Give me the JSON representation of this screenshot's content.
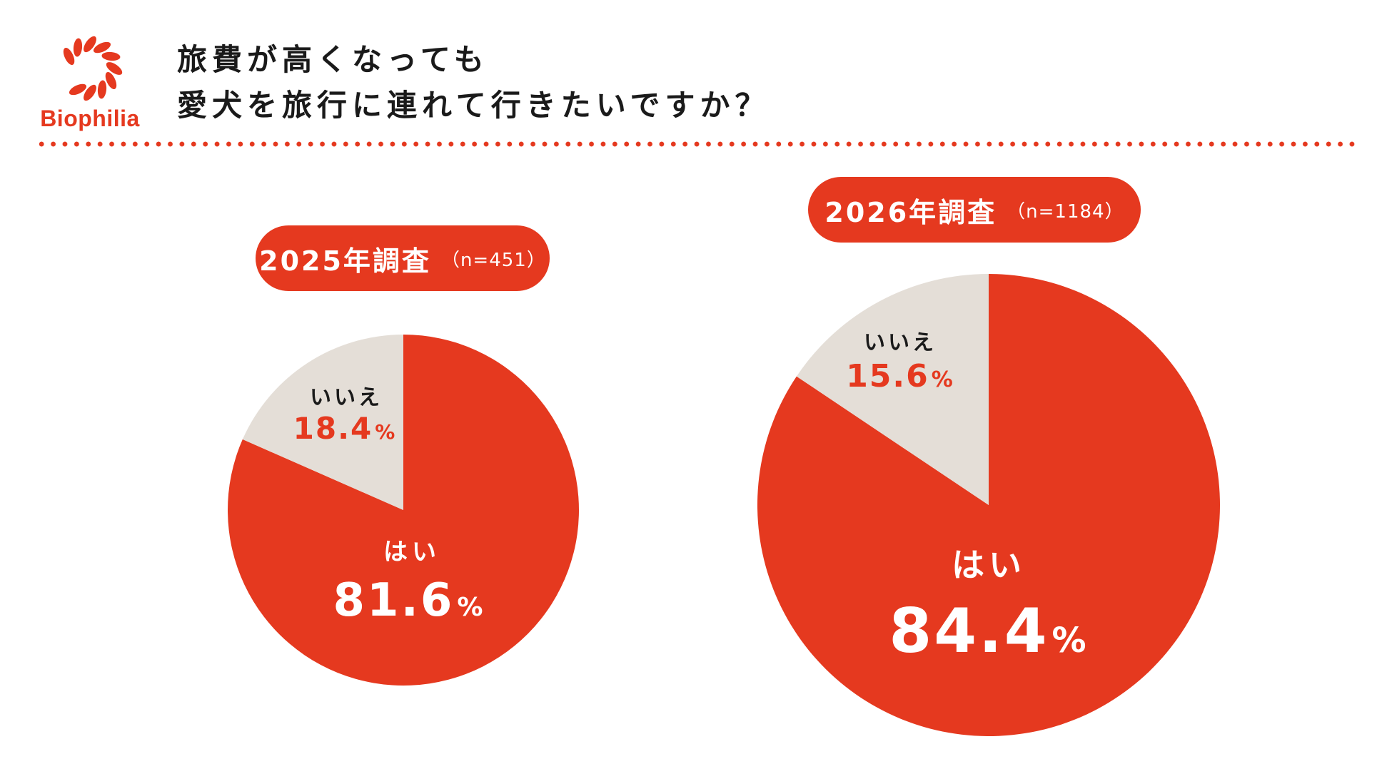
{
  "brand": {
    "name": "Biophilia",
    "accent": "#e5391f"
  },
  "title": {
    "line1": "旅費が高くなっても",
    "line2": "愛犬を旅行に連れて行きたいですか？"
  },
  "colors": {
    "yes": "#e5391f",
    "no": "#e4ded7",
    "no_text": "#e5391f",
    "yes_text": "#ffffff",
    "label_dark": "#1a1a1a"
  },
  "chart_data": [
    {
      "type": "pie",
      "title": "2025年調査",
      "sample": "（n=451）",
      "start": "12 o'clock, clockwise",
      "slices": [
        {
          "label": "はい",
          "value": 81.6,
          "value_text": "81.6",
          "unit": "%"
        },
        {
          "label": "いいえ",
          "value": 18.4,
          "value_text": "18.4",
          "unit": "%"
        }
      ]
    },
    {
      "type": "pie",
      "title": "2026年調査",
      "sample": "（n=1184）",
      "start": "12 o'clock, clockwise",
      "slices": [
        {
          "label": "はい",
          "value": 84.4,
          "value_text": "84.4",
          "unit": "%"
        },
        {
          "label": "いいえ",
          "value": 15.6,
          "value_text": "15.6",
          "unit": "%"
        }
      ]
    }
  ]
}
